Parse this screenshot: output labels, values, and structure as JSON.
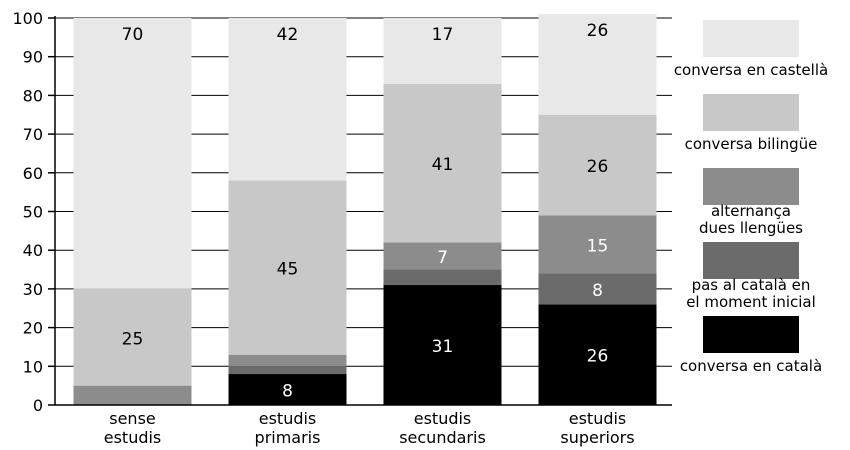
{
  "chart_data": {
    "type": "bar",
    "stacked": true,
    "orientation": "vertical",
    "categories": [
      [
        "sense",
        "estudis"
      ],
      [
        "estudis",
        "primaris"
      ],
      [
        "estudis",
        "secundaris"
      ],
      [
        "estudis",
        "superiors"
      ]
    ],
    "ylim": [
      0,
      100
    ],
    "yticks": [
      0,
      10,
      20,
      30,
      40,
      50,
      60,
      70,
      80,
      90,
      100
    ],
    "grid": true,
    "legend_position": "right",
    "series": [
      {
        "name": "conversa en català",
        "legend_lines": [
          "conversa en català"
        ],
        "color": "#000000",
        "label_color": "#ffffff",
        "values": [
          0,
          8,
          31,
          26
        ],
        "labels": [
          "",
          "8",
          "31",
          "26"
        ]
      },
      {
        "name": "pas al català en el moment inicial",
        "legend_lines": [
          "pas al català en",
          "el moment inicial"
        ],
        "color": "#6b6b6b",
        "label_color": "#ffffff",
        "values": [
          0,
          2,
          4,
          8
        ],
        "labels": [
          "",
          "",
          "",
          "8"
        ]
      },
      {
        "name": "alternança dues llengües",
        "legend_lines": [
          "alternança",
          "dues llengües"
        ],
        "color": "#8c8c8c",
        "label_color": "#ffffff",
        "values": [
          5,
          3,
          7,
          15
        ],
        "labels": [
          "",
          "",
          "7",
          "15"
        ]
      },
      {
        "name": "conversa bilingüe",
        "legend_lines": [
          "conversa bilingüe"
        ],
        "color": "#c8c8c8",
        "label_color": "#000000",
        "values": [
          25,
          45,
          41,
          26
        ],
        "labels": [
          "25",
          "45",
          "41",
          "26"
        ]
      },
      {
        "name": "conversa en castellà",
        "legend_lines": [
          "conversa en castellà"
        ],
        "color": "#e8e8e8",
        "label_color": "#000000",
        "values": [
          70,
          42,
          17,
          26
        ],
        "labels": [
          "70",
          "42",
          "17",
          "26"
        ]
      }
    ]
  }
}
